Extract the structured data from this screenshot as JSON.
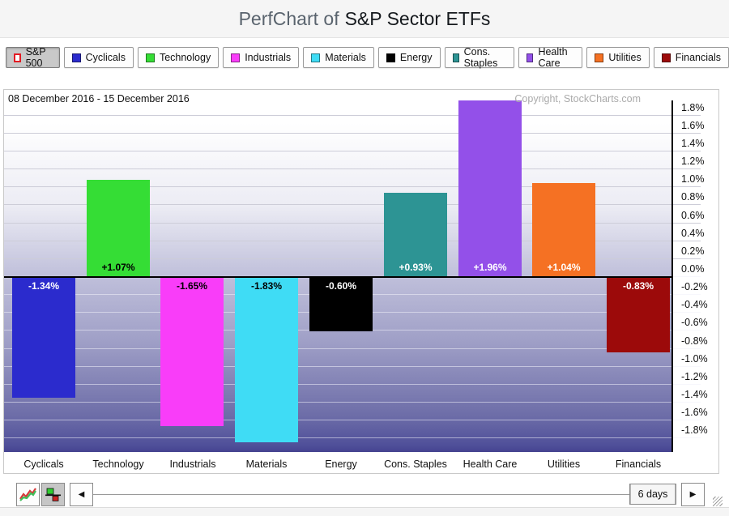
{
  "header": {
    "title_prefix": "PerfChart of",
    "title_main": "S&P Sector ETFs"
  },
  "legend": [
    {
      "label": "S&P 500",
      "swatch": "#ffffff",
      "swatch_border": "#e31b23",
      "pressed": true
    },
    {
      "label": "Cyclicals",
      "swatch": "#2b2bcd",
      "pressed": false
    },
    {
      "label": "Technology",
      "swatch": "#35dd35",
      "pressed": false
    },
    {
      "label": "Industrials",
      "swatch": "#f93df9",
      "pressed": false
    },
    {
      "label": "Materials",
      "swatch": "#3fdcf5",
      "pressed": false
    },
    {
      "label": "Energy",
      "swatch": "#000000",
      "pressed": false
    },
    {
      "label": "Cons. Staples",
      "swatch": "#2d9494",
      "pressed": false
    },
    {
      "label": "Health Care",
      "swatch": "#9350e9",
      "pressed": false
    },
    {
      "label": "Utilities",
      "swatch": "#f57123",
      "pressed": false
    },
    {
      "label": "Financials",
      "swatch": "#9c0a0a",
      "pressed": false
    }
  ],
  "chart": {
    "date_range": "08 December 2016 - 15 December 2016",
    "copyright": "Copyright, StockCharts.com"
  },
  "chart_data": {
    "type": "bar",
    "title": "PerfChart of S&P Sector ETFs",
    "categories": [
      "Cyclicals",
      "Technology",
      "Industrials",
      "Materials",
      "Energy",
      "Cons. Staples",
      "Health Care",
      "Utilities",
      "Financials"
    ],
    "values": [
      -1.34,
      1.07,
      -1.65,
      -1.83,
      -0.6,
      0.93,
      1.96,
      1.04,
      -0.83
    ],
    "bar_labels": [
      "-1.34%",
      "+1.07%",
      "-1.65%",
      "-1.83%",
      "-0.60%",
      "+0.93%",
      "+1.96%",
      "+1.04%",
      "-0.83%"
    ],
    "bar_colors": [
      "#2b2bcd",
      "#35dd35",
      "#f93df9",
      "#3fdcf5",
      "#000000",
      "#2d9494",
      "#9350e9",
      "#f57123",
      "#9c0a0a"
    ],
    "label_text_colors": [
      "#ffffff",
      "#000000",
      "#000000",
      "#000000",
      "#ffffff",
      "#ffffff",
      "#ffffff",
      "#ffffff",
      "#ffffff"
    ],
    "xlabel": "",
    "ylabel": "",
    "ylim": [
      -1.95,
      2.07
    ],
    "y_tick_step": 0.2,
    "y_tick_labels": [
      "1.8%",
      "1.6%",
      "1.4%",
      "1.2%",
      "1.0%",
      "0.8%",
      "0.6%",
      "0.4%",
      "0.2%",
      "0.0%",
      "-0.2%",
      "-0.4%",
      "-0.6%",
      "-0.8%",
      "-1.0%",
      "-1.2%",
      "-1.4%",
      "-1.6%",
      "-1.8%"
    ],
    "grid": true,
    "legend_position": "top"
  },
  "toolbar": {
    "left_arrow": "◀",
    "right_arrow": "▶",
    "slider_value": "6 days"
  }
}
